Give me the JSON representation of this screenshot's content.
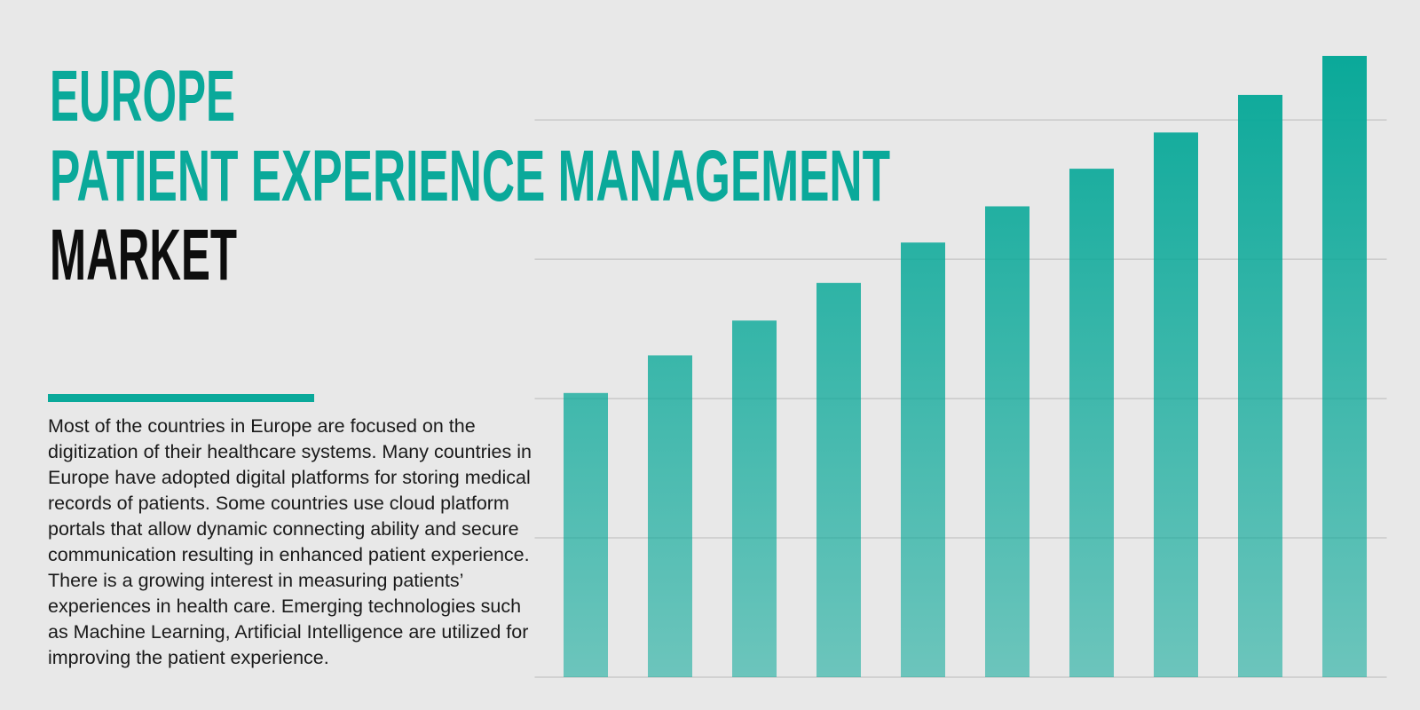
{
  "title_lines": [
    "EUROPE",
    "PATIENT EXPERIENCE MANAGEMENT",
    "MARKET"
  ],
  "description": "Most of the countries in Europe are focused on the digitization of their healthcare systems. Many countries in Europe have adopted digital platforms for storing medical records of patients. Some countries use cloud platform portals that allow dynamic connecting ability and secure communication resulting in enhanced patient experience. There is a growing interest in measuring patients’ experiences in health care. Emerging technologies such as Machine Learning, Artificial Intelligence are utilized for improving the patient experience.",
  "chart_data": {
    "type": "bar",
    "categories": [
      null,
      null,
      null,
      null,
      null,
      null,
      null,
      null,
      null,
      null
    ],
    "values": [
      2.04,
      2.31,
      2.56,
      2.83,
      3.12,
      3.38,
      3.65,
      3.91,
      4.18,
      4.46
    ],
    "color": "#07a898",
    "ylim": [
      0,
      4.6
    ],
    "yticks": [
      0,
      1,
      2,
      3,
      4
    ],
    "grid": true
  }
}
